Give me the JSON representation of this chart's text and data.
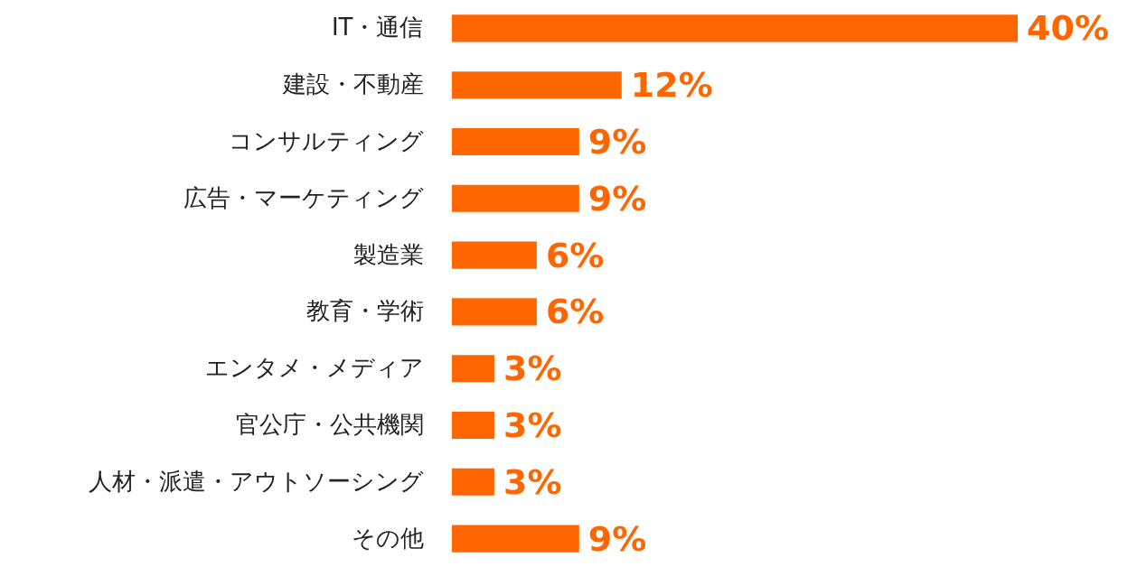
{
  "chart_data": {
    "type": "bar",
    "orientation": "horizontal",
    "categories": [
      "IT・通信",
      "建設・不動産",
      "コンサルティング",
      "広告・マーケティング",
      "製造業",
      "教育・学術",
      "エンタメ・メディア",
      "官公庁・公共機関",
      "人材・派遣・アウトソーシング",
      "その他"
    ],
    "values": [
      40,
      12,
      9,
      9,
      6,
      6,
      3,
      3,
      3,
      9
    ],
    "color": "#ff6600",
    "value_labels": [
      "40%",
      "12%",
      "9%",
      "9%",
      "6%",
      "6%",
      "3%",
      "3%",
      "3%",
      "9%"
    ]
  }
}
